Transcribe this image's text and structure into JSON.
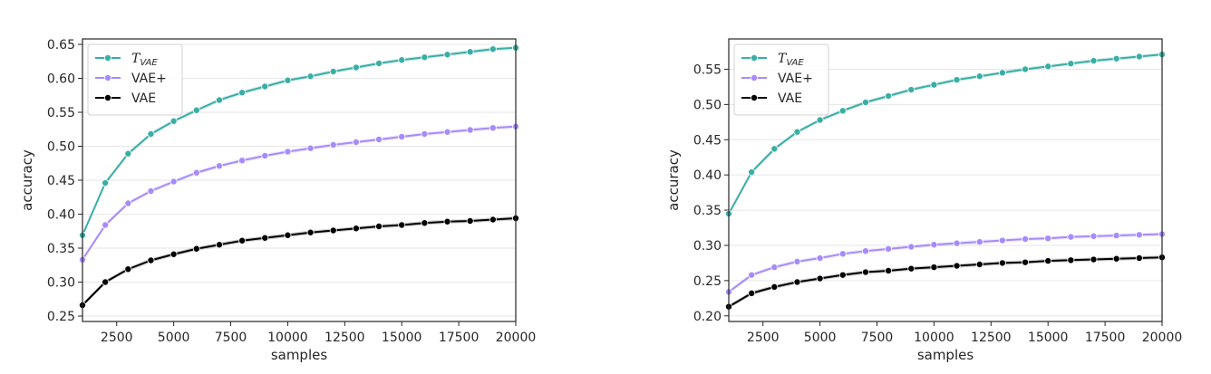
{
  "chart_data": [
    {
      "type": "line",
      "xlabel": "samples",
      "ylabel": "accuracy",
      "xlim": [
        1000,
        20000
      ],
      "ylim": [
        0.242,
        0.658
      ],
      "xticks": [
        2500,
        5000,
        7500,
        10000,
        12500,
        15000,
        17500,
        20000
      ],
      "xtick_labels": [
        "2500",
        "5000",
        "7500",
        "10000",
        "12500",
        "15000",
        "17500",
        "20000"
      ],
      "yticks": [
        0.25,
        0.3,
        0.35,
        0.4,
        0.45,
        0.5,
        0.55,
        0.6,
        0.65
      ],
      "ytick_labels": [
        "0.25",
        "0.30",
        "0.35",
        "0.40",
        "0.45",
        "0.50",
        "0.55",
        "0.60",
        "0.65"
      ],
      "grid": "horizontal",
      "legend_position": "top-left",
      "x": [
        1000,
        2000,
        3000,
        4000,
        5000,
        6000,
        7000,
        8000,
        9000,
        10000,
        11000,
        12000,
        13000,
        14000,
        15000,
        16000,
        17000,
        18000,
        19000,
        20000
      ],
      "series": [
        {
          "name": "T_VAE",
          "label_main": "T",
          "label_sub": "VAE",
          "color": "#3aaea5",
          "values": [
            0.369,
            0.446,
            0.489,
            0.518,
            0.537,
            0.553,
            0.568,
            0.579,
            0.588,
            0.597,
            0.603,
            0.61,
            0.616,
            0.622,
            0.627,
            0.631,
            0.635,
            0.639,
            0.643,
            0.645
          ]
        },
        {
          "name": "VAE+",
          "label_main": "VAE+",
          "label_sub": "",
          "color": "#a78bfa",
          "values": [
            0.333,
            0.384,
            0.416,
            0.434,
            0.448,
            0.461,
            0.471,
            0.479,
            0.486,
            0.492,
            0.497,
            0.502,
            0.506,
            0.51,
            0.514,
            0.518,
            0.521,
            0.524,
            0.527,
            0.529
          ]
        },
        {
          "name": "VAE",
          "label_main": "VAE",
          "label_sub": "",
          "color": "#000000",
          "values": [
            0.266,
            0.3,
            0.319,
            0.332,
            0.341,
            0.349,
            0.355,
            0.361,
            0.365,
            0.369,
            0.373,
            0.376,
            0.379,
            0.382,
            0.384,
            0.387,
            0.389,
            0.39,
            0.392,
            0.394
          ]
        }
      ]
    },
    {
      "type": "line",
      "xlabel": "samples",
      "ylabel": "accuracy",
      "xlim": [
        1000,
        20000
      ],
      "ylim": [
        0.192,
        0.593
      ],
      "xticks": [
        2500,
        5000,
        7500,
        10000,
        12500,
        15000,
        17500,
        20000
      ],
      "xtick_labels": [
        "2500",
        "5000",
        "7500",
        "10000",
        "12500",
        "15000",
        "17500",
        "20000"
      ],
      "yticks": [
        0.2,
        0.25,
        0.3,
        0.35,
        0.4,
        0.45,
        0.5,
        0.55
      ],
      "ytick_labels": [
        "0.20",
        "0.25",
        "0.30",
        "0.35",
        "0.40",
        "0.45",
        "0.50",
        "0.55"
      ],
      "grid": "horizontal",
      "legend_position": "top-left",
      "x": [
        1000,
        2000,
        3000,
        4000,
        5000,
        6000,
        7000,
        8000,
        9000,
        10000,
        11000,
        12000,
        13000,
        14000,
        15000,
        16000,
        17000,
        18000,
        19000,
        20000
      ],
      "series": [
        {
          "name": "T_VAE",
          "label_main": "T",
          "label_sub": "VAE",
          "color": "#3aaea5",
          "values": [
            0.345,
            0.404,
            0.437,
            0.461,
            0.478,
            0.491,
            0.503,
            0.512,
            0.521,
            0.528,
            0.535,
            0.54,
            0.545,
            0.55,
            0.554,
            0.558,
            0.562,
            0.565,
            0.568,
            0.571
          ]
        },
        {
          "name": "VAE+",
          "label_main": "VAE+",
          "label_sub": "",
          "color": "#a78bfa",
          "values": [
            0.234,
            0.258,
            0.269,
            0.277,
            0.282,
            0.288,
            0.292,
            0.295,
            0.298,
            0.301,
            0.303,
            0.305,
            0.307,
            0.309,
            0.31,
            0.312,
            0.313,
            0.314,
            0.315,
            0.316
          ]
        },
        {
          "name": "VAE",
          "label_main": "VAE",
          "label_sub": "",
          "color": "#000000",
          "values": [
            0.213,
            0.232,
            0.241,
            0.248,
            0.253,
            0.258,
            0.262,
            0.264,
            0.267,
            0.269,
            0.271,
            0.273,
            0.275,
            0.276,
            0.278,
            0.279,
            0.28,
            0.281,
            0.282,
            0.283
          ]
        }
      ]
    }
  ]
}
